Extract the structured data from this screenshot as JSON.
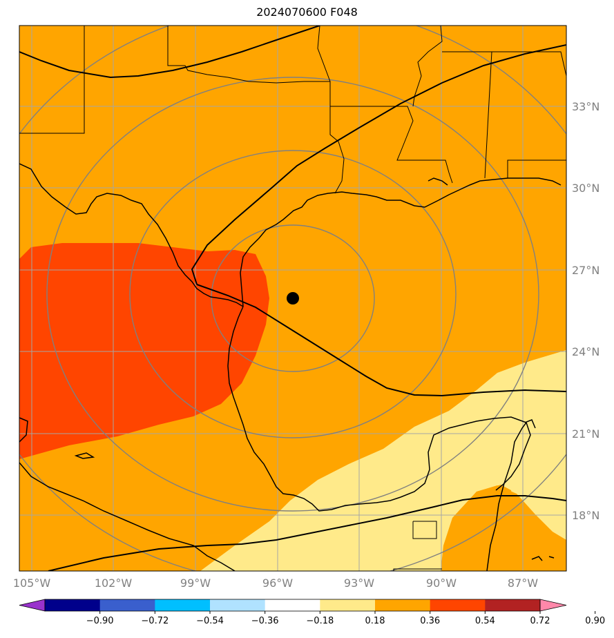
{
  "title": "2024070600 F048",
  "map": {
    "lon_labels": [
      "105°W",
      "102°W",
      "99°W",
      "96°W",
      "93°W",
      "90°W",
      "87°W"
    ],
    "lat_labels": [
      "33°N",
      "30°N",
      "27°N",
      "24°N",
      "21°N",
      "18°N"
    ],
    "center_marker": {
      "lon": -95.6,
      "lat": 25.9
    },
    "colors": {
      "fill_0_36_0_54": "#ffa500",
      "fill_0_54_0_72": "#ff4500",
      "fill_0_18_0_36": "#ffea8a",
      "coast": "#000000",
      "grid": "#999999",
      "range_rings": "#808080"
    }
  },
  "colorbar": {
    "colors": [
      "#9932cc",
      "#00008b",
      "#3a5fcd",
      "#00bfff",
      "#b0e2ff",
      "#ffffff",
      "#ffea8a",
      "#ffa500",
      "#ff4500",
      "#b22222",
      "#ff88aa"
    ],
    "under_color": "#9932cc",
    "over_color": "#ff88aa",
    "tick_labels": [
      "−0.90",
      "−0.72",
      "−0.54",
      "−0.36",
      "−0.18",
      "0.18",
      "0.36",
      "0.54",
      "0.72",
      "0.90"
    ]
  }
}
